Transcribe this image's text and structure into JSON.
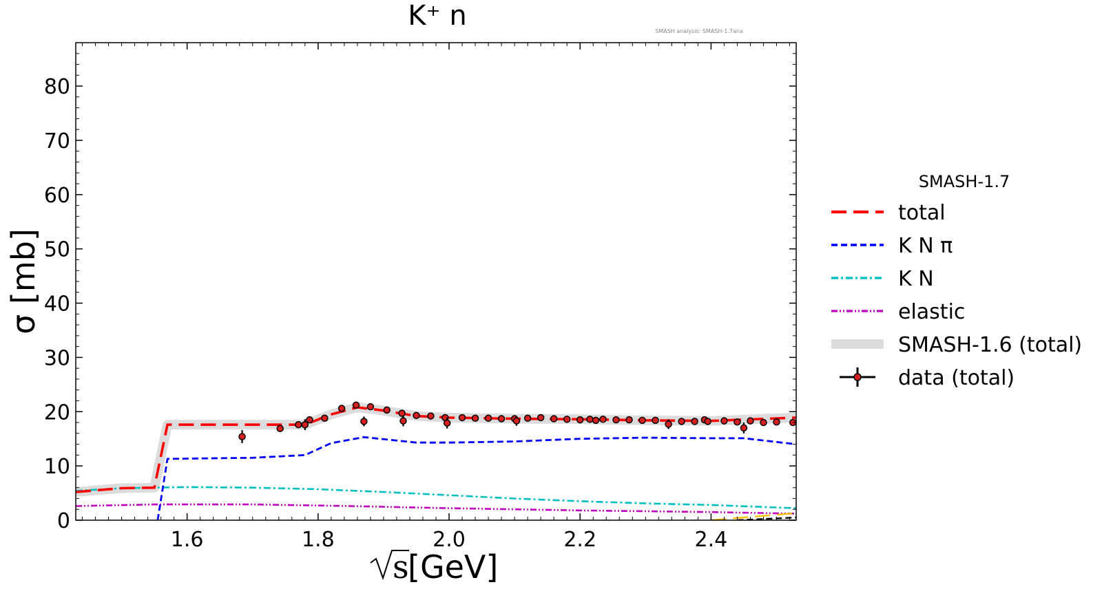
{
  "chart_data": {
    "type": "line",
    "title": "K⁺ n",
    "watermark": "SMASH analysis: SMASH-1.7ana",
    "xlabel_symbol": "s",
    "xlabel_unit": "[GeV]",
    "ylabel": "σ [mb]",
    "xlim": [
      1.43,
      2.53
    ],
    "ylim": [
      0,
      88
    ],
    "xticks": [
      1.6,
      1.8,
      2.0,
      2.2,
      2.4
    ],
    "xtick_labels": [
      "1.6",
      "1.8",
      "2.0",
      "2.2",
      "2.4"
    ],
    "yticks": [
      0,
      10,
      20,
      30,
      40,
      50,
      60,
      70,
      80
    ],
    "ytick_labels": [
      "0",
      "10",
      "20",
      "30",
      "40",
      "50",
      "60",
      "70",
      "80"
    ],
    "grid": false,
    "legend_title": "SMASH-1.7",
    "legend_position": "outside-right",
    "series": [
      {
        "name": "total",
        "color": "#ff0000",
        "style": "dashed",
        "x": [
          1.43,
          1.5,
          1.55,
          1.57,
          1.7,
          1.78,
          1.82,
          1.86,
          1.9,
          1.95,
          2.0,
          2.1,
          2.2,
          2.3,
          2.4,
          2.53
        ],
        "y": [
          5.2,
          5.9,
          6.0,
          17.6,
          17.6,
          17.6,
          19.5,
          20.8,
          20.2,
          19.2,
          18.9,
          18.7,
          18.6,
          18.4,
          18.3,
          18.9
        ]
      },
      {
        "name": "K N π",
        "color": "#0000ff",
        "style": "dotted",
        "x": [
          1.555,
          1.57,
          1.7,
          1.78,
          1.82,
          1.87,
          1.95,
          2.0,
          2.1,
          2.2,
          2.3,
          2.4,
          2.45,
          2.53
        ],
        "y": [
          0,
          11.3,
          11.5,
          12.0,
          14.2,
          15.3,
          14.3,
          14.3,
          14.5,
          15.0,
          15.2,
          15.1,
          15.1,
          14.0
        ]
      },
      {
        "name": "K N",
        "color": "#00bfbf",
        "style": "dash-dot",
        "x": [
          1.43,
          1.5,
          1.6,
          1.7,
          1.8,
          1.9,
          2.0,
          2.1,
          2.2,
          2.3,
          2.4,
          2.53
        ],
        "y": [
          5.4,
          5.9,
          6.1,
          6.0,
          5.7,
          5.2,
          4.6,
          4.0,
          3.5,
          3.1,
          2.8,
          2.2
        ]
      },
      {
        "name": "elastic",
        "color": "#bf00bf",
        "style": "dash-dot-dot",
        "x": [
          1.43,
          1.55,
          1.7,
          1.85,
          2.0,
          2.2,
          2.4,
          2.53
        ],
        "y": [
          2.6,
          2.9,
          2.9,
          2.6,
          2.2,
          1.8,
          1.5,
          1.2
        ]
      },
      {
        "name": "SMASH-1.6 (total)",
        "color": "#dcdcdc",
        "style": "band",
        "x": [
          1.43,
          1.5,
          1.55,
          1.57,
          1.7,
          1.78,
          1.82,
          1.86,
          1.9,
          1.95,
          2.0,
          2.1,
          2.2,
          2.3,
          2.4,
          2.53
        ],
        "y": [
          5.2,
          5.9,
          6.0,
          17.6,
          17.6,
          17.6,
          19.5,
          20.8,
          20.2,
          19.2,
          18.9,
          18.7,
          18.6,
          18.4,
          18.3,
          18.9
        ]
      }
    ],
    "extra_lines": [
      {
        "color": "#ffbf00",
        "style": "dashed",
        "x": [
          2.4,
          2.53
        ],
        "y": [
          0,
          1.3
        ]
      },
      {
        "color": "#000000",
        "style": "dotted",
        "x": [
          2.44,
          2.53
        ],
        "y": [
          0,
          0.5
        ]
      }
    ],
    "data_points": {
      "name": "data (total)",
      "color": "#d62020",
      "x": [
        1.684,
        1.742,
        1.77,
        1.78,
        1.787,
        1.81,
        1.836,
        1.858,
        1.87,
        1.88,
        1.905,
        1.928,
        1.93,
        1.95,
        1.972,
        1.994,
        1.997,
        2.02,
        2.04,
        2.06,
        2.08,
        2.1,
        2.103,
        2.12,
        2.14,
        2.16,
        2.18,
        2.2,
        2.215,
        2.224,
        2.235,
        2.255,
        2.275,
        2.295,
        2.315,
        2.335,
        2.355,
        2.375,
        2.39,
        2.395,
        2.42,
        2.44,
        2.45,
        2.46,
        2.48,
        2.5,
        2.525
      ],
      "y": [
        15.4,
        16.9,
        17.6,
        17.6,
        18.5,
        18.8,
        20.6,
        21.2,
        18.2,
        20.9,
        20.3,
        19.7,
        18.3,
        19.3,
        19.2,
        18.9,
        17.9,
        18.9,
        18.8,
        18.8,
        18.7,
        18.7,
        18.3,
        18.8,
        18.9,
        18.7,
        18.6,
        18.5,
        18.6,
        18.4,
        18.6,
        18.5,
        18.5,
        18.4,
        18.4,
        17.7,
        18.2,
        18.2,
        18.5,
        18.2,
        18.3,
        18.1,
        17.0,
        18.3,
        18.0,
        18.1,
        18.0
      ],
      "yerr": [
        1.2,
        0.6,
        0.5,
        1.0,
        0.6,
        0.5,
        0.5,
        0.5,
        0.9,
        0.5,
        0.5,
        0.6,
        1.0,
        0.5,
        0.5,
        0.5,
        1.0,
        0.5,
        0.4,
        0.4,
        0.4,
        0.4,
        0.9,
        0.4,
        0.4,
        0.4,
        0.4,
        0.4,
        0.4,
        0.4,
        0.4,
        0.4,
        0.4,
        0.4,
        0.4,
        0.9,
        0.4,
        0.4,
        0.6,
        0.4,
        0.4,
        0.4,
        1.0,
        0.4,
        0.4,
        0.4,
        0.5
      ]
    }
  }
}
